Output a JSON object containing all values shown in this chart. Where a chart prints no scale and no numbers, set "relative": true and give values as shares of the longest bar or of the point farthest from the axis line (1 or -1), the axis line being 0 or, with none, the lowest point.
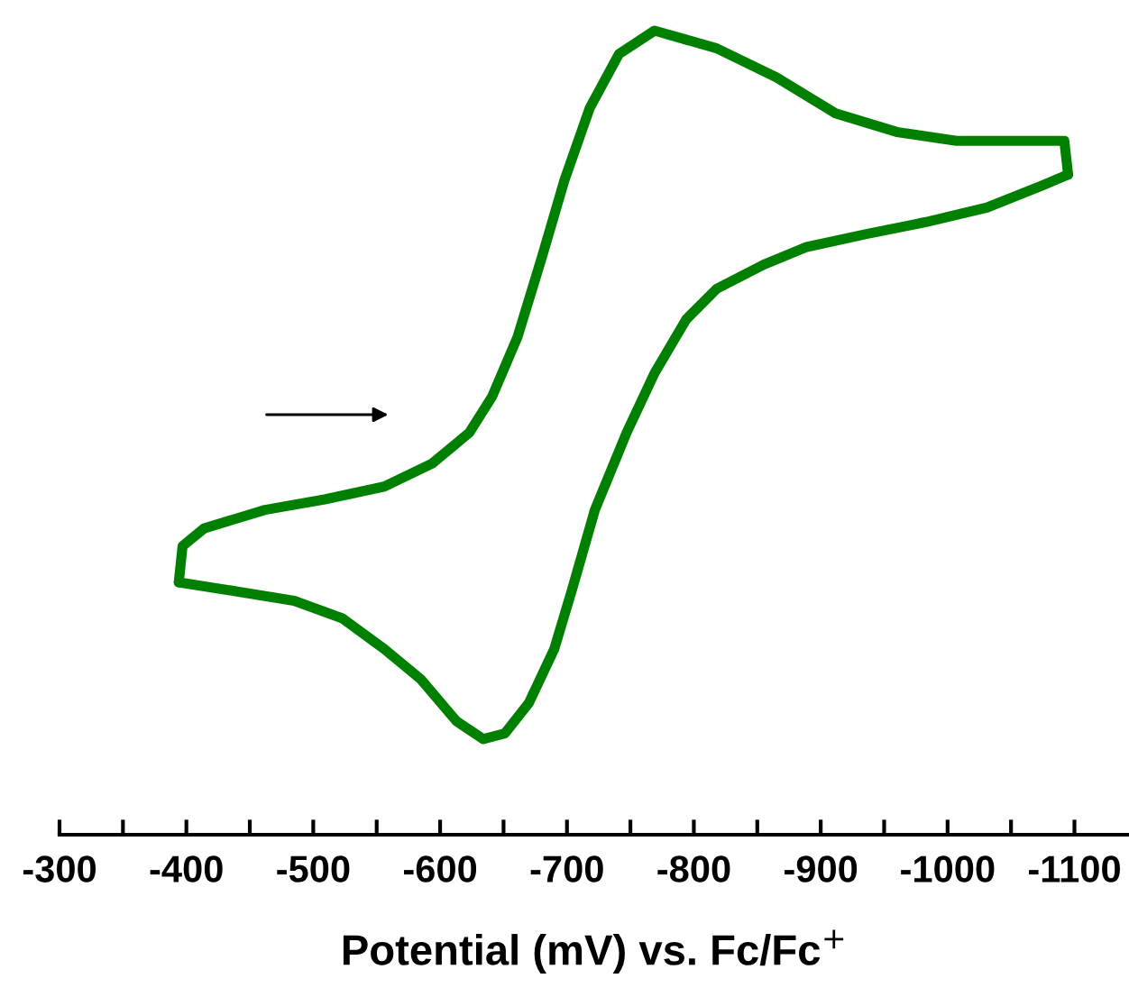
{
  "chart_data": {
    "type": "line",
    "relative": true,
    "xlabel": "Potential (mV) vs. Fc/Fc$^{+}$",
    "xlim": [
      -300,
      -1143
    ],
    "xticks": [
      -300,
      {
        "value": -350,
        "label": null
      },
      -400,
      {
        "value": -450,
        "label": null
      },
      -500,
      {
        "value": -550,
        "label": null
      },
      -600,
      {
        "value": -650,
        "label": null
      },
      -700,
      {
        "value": -750,
        "label": null
      },
      -800,
      {
        "value": -850,
        "label": null
      },
      -900,
      {
        "value": -950,
        "label": null
      },
      -1000,
      {
        "value": -1050,
        "label": null
      },
      -1100
    ],
    "tick_labels": "x",
    "grid": false,
    "legend": false,
    "marker": "none",
    "line_style": "solid",
    "series": [
      {
        "color": "#008000",
        "x": [
          -394,
          -397,
          -414,
          -462,
          -509,
          -556,
          -594,
          -623,
          -641,
          -661,
          -680,
          -698,
          -718,
          -741,
          -769,
          -818,
          -865,
          -912,
          -960,
          -1007,
          -1092,
          -1095
        ],
        "values": [
          0.314,
          0.359,
          0.381,
          0.404,
          0.417,
          0.433,
          0.462,
          0.5,
          0.545,
          0.619,
          0.717,
          0.814,
          0.904,
          0.971,
          1.0,
          0.978,
          0.942,
          0.897,
          0.874,
          0.863,
          0.863,
          0.821
        ]
      },
      {
        "color": "#008000",
        "x": [
          -1095,
          -1074,
          -1031,
          -983,
          -936,
          -889,
          -855,
          -818,
          -794,
          -769,
          -747,
          -722,
          -704,
          -690,
          -670,
          -651,
          -634,
          -613,
          -585,
          -556,
          -523,
          -485,
          -438,
          -394
        ],
        "values": [
          0.821,
          0.807,
          0.78,
          0.762,
          0.747,
          0.731,
          0.709,
          0.679,
          0.641,
          0.574,
          0.5,
          0.404,
          0.305,
          0.231,
          0.164,
          0.126,
          0.119,
          0.141,
          0.193,
          0.231,
          0.269,
          0.291,
          0.303,
          0.314
        ]
      }
    ]
  }
}
